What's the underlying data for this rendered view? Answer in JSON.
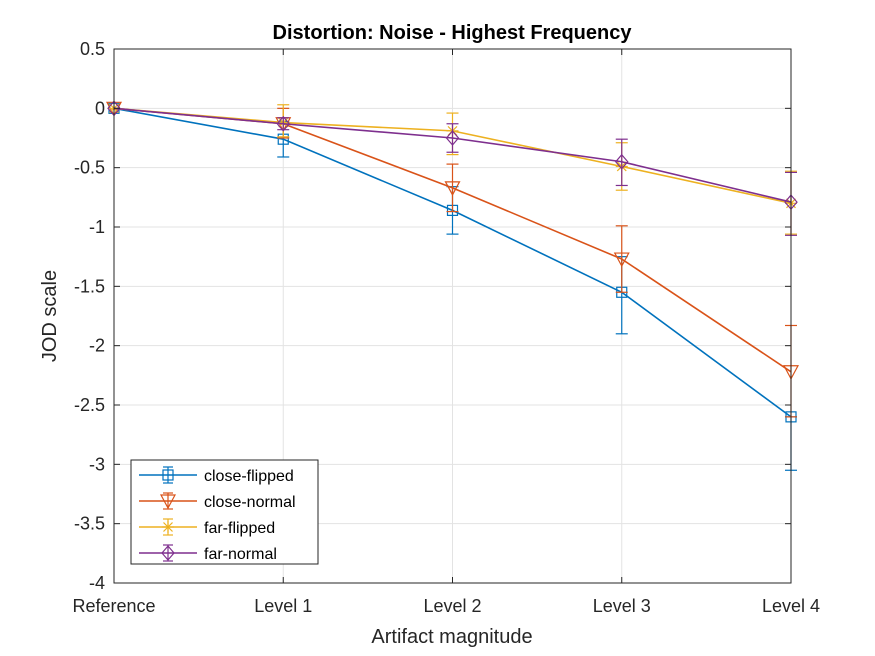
{
  "chart_data": {
    "type": "line",
    "title": "Distortion: Noise - Highest Frequency",
    "xlabel": "Artifact magnitude",
    "ylabel": "JOD scale",
    "categories": [
      "Reference",
      "Level 1",
      "Level 2",
      "Level 3",
      "Level 4"
    ],
    "ylim": [
      -4,
      0.5
    ],
    "yticks": [
      0.5,
      0,
      -0.5,
      -1,
      -1.5,
      -2,
      -2.5,
      -3,
      -3.5,
      -4
    ],
    "ytick_labels": [
      "0.5",
      "0",
      "-0.5",
      "-1",
      "-1.5",
      "-2",
      "-2.5",
      "-3",
      "-3.5",
      "-4"
    ],
    "grid": true,
    "legend_position": "bottom-left",
    "series": [
      {
        "name": "close-flipped",
        "color": "#0072BD",
        "marker": "square",
        "values": [
          0,
          -0.26,
          -0.86,
          -1.55,
          -2.6
        ],
        "err_low": [
          0,
          0.15,
          0.2,
          0.35,
          0.45
        ],
        "err_high": [
          0,
          0.15,
          0.2,
          0.3,
          0.0
        ]
      },
      {
        "name": "close-normal",
        "color": "#D95319",
        "marker": "triangle-down",
        "values": [
          0,
          -0.13,
          -0.67,
          -1.27,
          -2.22
        ],
        "err_low": [
          0,
          0.12,
          0.2,
          0.28,
          0.38
        ],
        "err_high": [
          0,
          0.13,
          0.2,
          0.28,
          0.39
        ]
      },
      {
        "name": "far-flipped",
        "color": "#EDB120",
        "marker": "asterisk",
        "values": [
          0,
          -0.12,
          -0.19,
          -0.49,
          -0.8
        ],
        "err_low": [
          0,
          0.12,
          0.2,
          0.2,
          0.26
        ],
        "err_high": [
          0,
          0.15,
          0.15,
          0.2,
          0.27
        ]
      },
      {
        "name": "far-normal",
        "color": "#7E2F8E",
        "marker": "diamond",
        "values": [
          0,
          -0.13,
          -0.25,
          -0.45,
          -0.79
        ],
        "err_low": [
          0,
          0.05,
          0.12,
          0.2,
          0.28
        ],
        "err_high": [
          0,
          0.05,
          0.12,
          0.19,
          0.25
        ]
      }
    ]
  }
}
